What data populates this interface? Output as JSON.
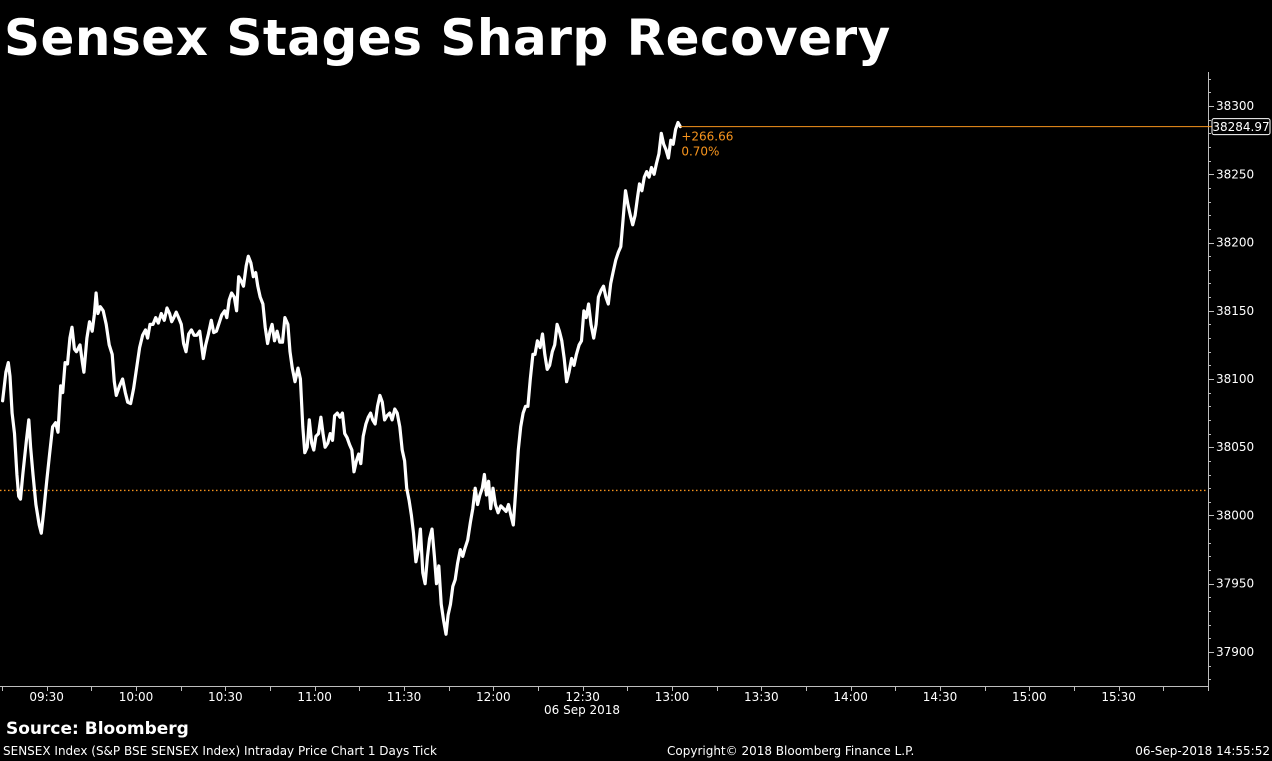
{
  "title": "Sensex Stages Sharp Recovery",
  "source": "Source: Bloomberg",
  "footer": {
    "left": "SENSEX Index (S&P BSE SENSEX Index) Intraday Price Chart 1 Days  Tick",
    "center": "Copyright© 2018 Bloomberg Finance L.P.",
    "right": "06-Sep-2018 14:55:52"
  },
  "colors": {
    "background": "#000000",
    "line": "#ffffff",
    "reference": "#f7941d",
    "annotation": "#f7941d"
  },
  "chart_data": {
    "type": "line",
    "title": "Sensex Stages Sharp Recovery",
    "date_label": "06 Sep 2018",
    "x_unit": "minutes since midnight",
    "ylim": [
      37875,
      38325
    ],
    "xlim": [
      555,
      960
    ],
    "yticks": [
      37900,
      37950,
      38000,
      38050,
      38100,
      38150,
      38200,
      38250,
      38300
    ],
    "xticks": [
      {
        "label": "09:30",
        "t": 570
      },
      {
        "label": "10:00",
        "t": 600
      },
      {
        "label": "10:30",
        "t": 630
      },
      {
        "label": "11:00",
        "t": 660
      },
      {
        "label": "11:30",
        "t": 690
      },
      {
        "label": "12:00",
        "t": 720
      },
      {
        "label": "12:30",
        "t": 750
      },
      {
        "label": "13:00",
        "t": 780
      },
      {
        "label": "13:30",
        "t": 810
      },
      {
        "label": "14:00",
        "t": 840
      },
      {
        "label": "14:30",
        "t": 870
      },
      {
        "label": "15:00",
        "t": 900
      },
      {
        "label": "15:30",
        "t": 930
      }
    ],
    "previous_close": 38018.31,
    "last_value": 38284.97,
    "last_value_label": "38284.97",
    "change_label": "+266.66",
    "change_pct_label": "0.70%",
    "grid": false,
    "series": [
      {
        "values": [
          [
            555.2,
            38084
          ],
          [
            556.3,
            38105
          ],
          [
            557.1,
            38112
          ],
          [
            557.7,
            38102
          ],
          [
            558.4,
            38075
          ],
          [
            559.2,
            38060
          ],
          [
            560.0,
            38030
          ],
          [
            560.6,
            38014
          ],
          [
            561.2,
            38012
          ],
          [
            562.0,
            38030
          ],
          [
            563.2,
            38055
          ],
          [
            564.0,
            38070
          ],
          [
            564.6,
            38050
          ],
          [
            565.4,
            38030
          ],
          [
            566.4,
            38008
          ],
          [
            567.5,
            37993
          ],
          [
            568.2,
            37987
          ],
          [
            569.0,
            38003
          ],
          [
            570.0,
            38025
          ],
          [
            571.0,
            38045
          ],
          [
            572.0,
            38065
          ],
          [
            573.0,
            38068
          ],
          [
            573.8,
            38061
          ],
          [
            574.7,
            38095
          ],
          [
            575.4,
            38090
          ],
          [
            576.2,
            38112
          ],
          [
            577.0,
            38111
          ],
          [
            577.8,
            38130
          ],
          [
            578.5,
            38138
          ],
          [
            579.3,
            38122
          ],
          [
            580.0,
            38120
          ],
          [
            581.2,
            38125
          ],
          [
            582.0,
            38112
          ],
          [
            582.5,
            38105
          ],
          [
            583.5,
            38130
          ],
          [
            584.4,
            38142
          ],
          [
            585.3,
            38135
          ],
          [
            586.0,
            38147
          ],
          [
            586.6,
            38163
          ],
          [
            587.2,
            38148
          ],
          [
            588.0,
            38153
          ],
          [
            589.0,
            38150
          ],
          [
            590.0,
            38140
          ],
          [
            591.0,
            38125
          ],
          [
            592.0,
            38118
          ],
          [
            592.7,
            38098
          ],
          [
            593.4,
            38088
          ],
          [
            594.5,
            38095
          ],
          [
            595.5,
            38100
          ],
          [
            596.4,
            38090
          ],
          [
            597.2,
            38083
          ],
          [
            598.2,
            38082
          ],
          [
            599.2,
            38093
          ],
          [
            600.2,
            38108
          ],
          [
            601.2,
            38123
          ],
          [
            602.2,
            38132
          ],
          [
            603.2,
            38136
          ],
          [
            603.9,
            38130
          ],
          [
            604.7,
            38140
          ],
          [
            605.7,
            38140
          ],
          [
            606.6,
            38145
          ],
          [
            607.5,
            38141
          ],
          [
            608.5,
            38148
          ],
          [
            609.5,
            38143
          ],
          [
            610.4,
            38152
          ],
          [
            611.3,
            38148
          ],
          [
            612.0,
            38142
          ],
          [
            612.7,
            38145
          ],
          [
            613.5,
            38149
          ],
          [
            614.3,
            38145
          ],
          [
            615.2,
            38140
          ],
          [
            616.0,
            38126
          ],
          [
            616.8,
            38120
          ],
          [
            617.7,
            38133
          ],
          [
            618.6,
            38136
          ],
          [
            619.5,
            38132
          ],
          [
            620.4,
            38132
          ],
          [
            621.4,
            38135
          ],
          [
            622.0,
            38125
          ],
          [
            622.6,
            38115
          ],
          [
            623.4,
            38125
          ],
          [
            624.3,
            38133
          ],
          [
            625.3,
            38143
          ],
          [
            626.1,
            38134
          ],
          [
            627.0,
            38135
          ],
          [
            627.9,
            38141
          ],
          [
            628.8,
            38147
          ],
          [
            629.8,
            38150
          ],
          [
            630.5,
            38145
          ],
          [
            631.3,
            38158
          ],
          [
            632.1,
            38163
          ],
          [
            633.0,
            38160
          ],
          [
            633.8,
            38150
          ],
          [
            634.5,
            38175
          ],
          [
            635.3,
            38172
          ],
          [
            636.1,
            38168
          ],
          [
            637.0,
            38183
          ],
          [
            637.7,
            38190
          ],
          [
            638.6,
            38185
          ],
          [
            639.4,
            38175
          ],
          [
            640.2,
            38178
          ],
          [
            640.9,
            38168
          ],
          [
            641.7,
            38160
          ],
          [
            642.6,
            38155
          ],
          [
            643.4,
            38138
          ],
          [
            644.2,
            38126
          ],
          [
            645.0,
            38135
          ],
          [
            645.7,
            38140
          ],
          [
            646.5,
            38128
          ],
          [
            647.4,
            38135
          ],
          [
            648.3,
            38127
          ],
          [
            649.2,
            38127
          ],
          [
            650.0,
            38145
          ],
          [
            651.0,
            38140
          ],
          [
            651.7,
            38120
          ],
          [
            652.5,
            38108
          ],
          [
            653.4,
            38098
          ],
          [
            654.4,
            38108
          ],
          [
            655.2,
            38100
          ],
          [
            656.0,
            38065
          ],
          [
            656.7,
            38046
          ],
          [
            657.5,
            38050
          ],
          [
            658.2,
            38070
          ],
          [
            659.0,
            38053
          ],
          [
            659.7,
            38048
          ],
          [
            660.4,
            38058
          ],
          [
            661.3,
            38060
          ],
          [
            662.1,
            38072
          ],
          [
            662.8,
            38060
          ],
          [
            663.5,
            38050
          ],
          [
            664.4,
            38053
          ],
          [
            665.2,
            38060
          ],
          [
            666.0,
            38055
          ],
          [
            666.7,
            38073
          ],
          [
            667.6,
            38075
          ],
          [
            668.5,
            38072
          ],
          [
            669.3,
            38075
          ],
          [
            670.1,
            38060
          ],
          [
            670.9,
            38057
          ],
          [
            671.7,
            38052
          ],
          [
            672.5,
            38048
          ],
          [
            673.2,
            38032
          ],
          [
            674.0,
            38040
          ],
          [
            674.8,
            38045
          ],
          [
            675.5,
            38038
          ],
          [
            676.3,
            38058
          ],
          [
            677.2,
            38067
          ],
          [
            678.0,
            38072
          ],
          [
            678.8,
            38075
          ],
          [
            679.5,
            38070
          ],
          [
            680.3,
            38067
          ],
          [
            681.1,
            38080
          ],
          [
            681.9,
            38088
          ],
          [
            682.7,
            38083
          ],
          [
            683.5,
            38070
          ],
          [
            684.3,
            38073
          ],
          [
            685.2,
            38075
          ],
          [
            686.0,
            38070
          ],
          [
            686.9,
            38078
          ],
          [
            687.7,
            38075
          ],
          [
            688.6,
            38065
          ],
          [
            689.4,
            38048
          ],
          [
            690.2,
            38040
          ],
          [
            690.9,
            38020
          ],
          [
            691.7,
            38011
          ],
          [
            692.5,
            38000
          ],
          [
            693.2,
            37987
          ],
          [
            694.0,
            37966
          ],
          [
            694.8,
            37975
          ],
          [
            695.5,
            37990
          ],
          [
            696.3,
            37958
          ],
          [
            697.1,
            37950
          ],
          [
            697.9,
            37970
          ],
          [
            698.6,
            37983
          ],
          [
            699.4,
            37990
          ],
          [
            700.2,
            37970
          ],
          [
            700.9,
            37950
          ],
          [
            701.7,
            37963
          ],
          [
            702.5,
            37935
          ],
          [
            703.3,
            37923
          ],
          [
            704.1,
            37913
          ],
          [
            704.8,
            37927
          ],
          [
            705.6,
            37935
          ],
          [
            706.4,
            37948
          ],
          [
            707.2,
            37953
          ],
          [
            708.0,
            37965
          ],
          [
            708.9,
            37975
          ],
          [
            709.7,
            37970
          ],
          [
            710.5,
            37976
          ],
          [
            711.4,
            37982
          ],
          [
            712.3,
            37995
          ],
          [
            713.1,
            38005
          ],
          [
            713.9,
            38020
          ],
          [
            714.7,
            38008
          ],
          [
            715.5,
            38015
          ],
          [
            716.3,
            38020
          ],
          [
            717.0,
            38030
          ],
          [
            717.7,
            38015
          ],
          [
            718.4,
            38025
          ],
          [
            719.1,
            38005
          ],
          [
            719.9,
            38020
          ],
          [
            720.7,
            38008
          ],
          [
            721.6,
            38002
          ],
          [
            722.5,
            38007
          ],
          [
            723.4,
            38005
          ],
          [
            724.3,
            38003
          ],
          [
            725.1,
            38008
          ],
          [
            725.9,
            38000
          ],
          [
            726.7,
            37993
          ],
          [
            727.5,
            38018
          ],
          [
            728.4,
            38048
          ],
          [
            729.2,
            38065
          ],
          [
            730.0,
            38075
          ],
          [
            730.8,
            38080
          ],
          [
            731.6,
            38080
          ],
          [
            732.4,
            38100
          ],
          [
            733.3,
            38118
          ],
          [
            734.0,
            38118
          ],
          [
            734.8,
            38128
          ],
          [
            735.7,
            38123
          ],
          [
            736.5,
            38133
          ],
          [
            737.3,
            38118
          ],
          [
            738.1,
            38107
          ],
          [
            738.9,
            38110
          ],
          [
            739.8,
            38120
          ],
          [
            740.6,
            38125
          ],
          [
            741.4,
            38140
          ],
          [
            742.2,
            38135
          ],
          [
            743.0,
            38128
          ],
          [
            743.8,
            38115
          ],
          [
            744.6,
            38098
          ],
          [
            745.4,
            38105
          ],
          [
            746.3,
            38115
          ],
          [
            747.1,
            38110
          ],
          [
            747.9,
            38118
          ],
          [
            748.8,
            38125
          ],
          [
            749.6,
            38128
          ],
          [
            750.4,
            38150
          ],
          [
            751.2,
            38145
          ],
          [
            752.0,
            38155
          ],
          [
            752.8,
            38140
          ],
          [
            753.7,
            38130
          ],
          [
            754.5,
            38140
          ],
          [
            755.3,
            38160
          ],
          [
            756.2,
            38165
          ],
          [
            757.0,
            38168
          ],
          [
            757.8,
            38160
          ],
          [
            758.6,
            38155
          ],
          [
            759.4,
            38170
          ],
          [
            760.2,
            38178
          ],
          [
            761.1,
            38187
          ],
          [
            762.0,
            38193
          ],
          [
            762.8,
            38197
          ],
          [
            763.6,
            38218
          ],
          [
            764.4,
            38238
          ],
          [
            765.2,
            38228
          ],
          [
            766.0,
            38220
          ],
          [
            766.8,
            38213
          ],
          [
            767.6,
            38220
          ],
          [
            768.4,
            38233
          ],
          [
            769.1,
            38243
          ],
          [
            769.9,
            38238
          ],
          [
            770.7,
            38248
          ],
          [
            771.5,
            38252
          ],
          [
            772.3,
            38248
          ],
          [
            773.1,
            38255
          ],
          [
            774.0,
            38250
          ],
          [
            774.8,
            38258
          ],
          [
            775.6,
            38265
          ],
          [
            776.4,
            38280
          ],
          [
            777.2,
            38272
          ],
          [
            778.0,
            38268
          ],
          [
            778.8,
            38262
          ],
          [
            779.6,
            38275
          ],
          [
            780.4,
            38272
          ],
          [
            781.2,
            38283
          ],
          [
            782.0,
            38288
          ],
          [
            782.8,
            38285
          ]
        ]
      }
    ]
  }
}
